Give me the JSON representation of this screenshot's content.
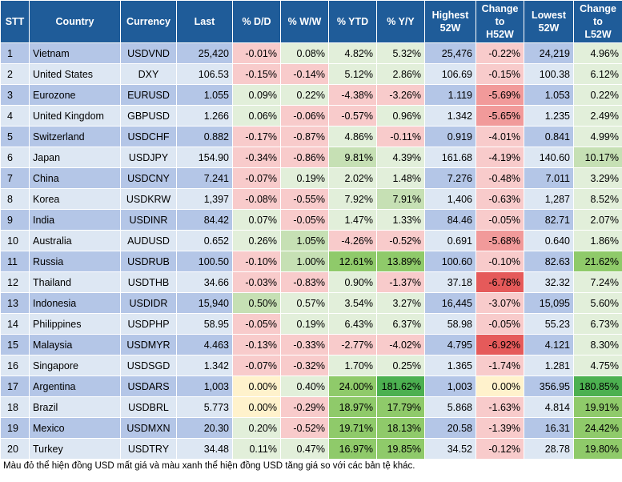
{
  "headers": [
    "STT",
    "Country",
    "Currency",
    "Last",
    "% D/D",
    "% W/W",
    "% YTD",
    "% Y/Y",
    "Highest\n52W",
    "Change\nto\nH52W",
    "Lowest\n52W",
    "Change\nto\nL52W"
  ],
  "rows": [
    [
      "1",
      "Vietnam",
      "USDVND",
      "25,420",
      "-0.01%",
      "0.08%",
      "4.82%",
      "5.32%",
      "25,476",
      "-0.22%",
      "24,219",
      "4.96%"
    ],
    [
      "2",
      "United States",
      "DXY",
      "106.53",
      "-0.15%",
      "-0.14%",
      "5.12%",
      "2.86%",
      "106.69",
      "-0.15%",
      "100.38",
      "6.12%"
    ],
    [
      "3",
      "Eurozone",
      "EURUSD",
      "1.055",
      "0.09%",
      "0.22%",
      "-4.38%",
      "-3.26%",
      "1.119",
      "-5.69%",
      "1.053",
      "0.22%"
    ],
    [
      "4",
      "United Kingdom",
      "GBPUSD",
      "1.266",
      "0.06%",
      "-0.06%",
      "-0.57%",
      "0.96%",
      "1.342",
      "-5.65%",
      "1.235",
      "2.49%"
    ],
    [
      "5",
      "Switzerland",
      "USDCHF",
      "0.882",
      "-0.17%",
      "-0.87%",
      "4.86%",
      "-0.11%",
      "0.919",
      "-4.01%",
      "0.841",
      "4.99%"
    ],
    [
      "6",
      "Japan",
      "USDJPY",
      "154.90",
      "-0.34%",
      "-0.86%",
      "9.81%",
      "4.39%",
      "161.68",
      "-4.19%",
      "140.60",
      "10.17%"
    ],
    [
      "7",
      "China",
      "USDCNY",
      "7.241",
      "-0.07%",
      "0.19%",
      "2.02%",
      "1.48%",
      "7.276",
      "-0.48%",
      "7.011",
      "3.29%"
    ],
    [
      "8",
      "Korea",
      "USDKRW",
      "1,397",
      "-0.08%",
      "-0.55%",
      "7.92%",
      "7.91%",
      "1,406",
      "-0.63%",
      "1,287",
      "8.52%"
    ],
    [
      "9",
      "India",
      "USDINR",
      "84.42",
      "0.07%",
      "-0.05%",
      "1.47%",
      "1.33%",
      "84.46",
      "-0.05%",
      "82.71",
      "2.07%"
    ],
    [
      "10",
      "Australia",
      "AUDUSD",
      "0.652",
      "0.26%",
      "1.05%",
      "-4.26%",
      "-0.52%",
      "0.691",
      "-5.68%",
      "0.640",
      "1.86%"
    ],
    [
      "11",
      "Russia",
      "USDRUB",
      "100.50",
      "-0.10%",
      "1.00%",
      "12.61%",
      "13.89%",
      "100.60",
      "-0.10%",
      "82.63",
      "21.62%"
    ],
    [
      "12",
      "Thailand",
      "USDTHB",
      "34.66",
      "-0.03%",
      "-0.83%",
      "0.90%",
      "-1.37%",
      "37.18",
      "-6.78%",
      "32.32",
      "7.24%"
    ],
    [
      "13",
      "Indonesia",
      "USDIDR",
      "15,940",
      "0.50%",
      "0.57%",
      "3.54%",
      "3.27%",
      "16,445",
      "-3.07%",
      "15,095",
      "5.60%"
    ],
    [
      "14",
      "Philippines",
      "USDPHP",
      "58.95",
      "-0.05%",
      "0.19%",
      "6.43%",
      "6.37%",
      "58.98",
      "-0.05%",
      "55.23",
      "6.73%"
    ],
    [
      "15",
      "Malaysia",
      "USDMYR",
      "4.463",
      "-0.13%",
      "-0.33%",
      "-2.77%",
      "-4.02%",
      "4.795",
      "-6.92%",
      "4.121",
      "8.30%"
    ],
    [
      "16",
      "Singapore",
      "USDSGD",
      "1.342",
      "-0.07%",
      "-0.32%",
      "1.70%",
      "0.25%",
      "1.365",
      "-1.74%",
      "1.281",
      "4.75%"
    ],
    [
      "17",
      "Argentina",
      "USDARS",
      "1,003",
      "0.00%",
      "0.40%",
      "24.00%",
      "181.62%",
      "1,003",
      "0.00%",
      "356.95",
      "180.85%"
    ],
    [
      "18",
      "Brazil",
      "USDBRL",
      "5.773",
      "0.00%",
      "-0.29%",
      "18.97%",
      "17.79%",
      "5.868",
      "-1.63%",
      "4.814",
      "19.91%"
    ],
    [
      "19",
      "Mexico",
      "USDMXN",
      "20.30",
      "0.20%",
      "-0.52%",
      "19.71%",
      "18.13%",
      "20.58",
      "-1.39%",
      "16.31",
      "24.42%"
    ],
    [
      "20",
      "Turkey",
      "USDTRY",
      "34.48",
      "0.11%",
      "0.47%",
      "16.97%",
      "19.85%",
      "34.52",
      "-0.12%",
      "28.78",
      "19.80%"
    ]
  ],
  "colors": {
    "header": "#1f5c99",
    "row_odd": "#b4c6e7",
    "row_even": "#dde7f3",
    "pos_light": "#e2efda",
    "pos_mid": "#c6e0b4",
    "pos_strong": "#8fca6a",
    "pos_max": "#4cb050",
    "neg_light": "#f8cbcb",
    "neg_mid": "#f19a9a",
    "neg_strong": "#e55a5a",
    "zero": "#fff2cc"
  },
  "note": "Màu đỏ thể hiện đồng USD mất giá và màu xanh thể hiện đồng USD tăng giá so với các bản tệ khác."
}
